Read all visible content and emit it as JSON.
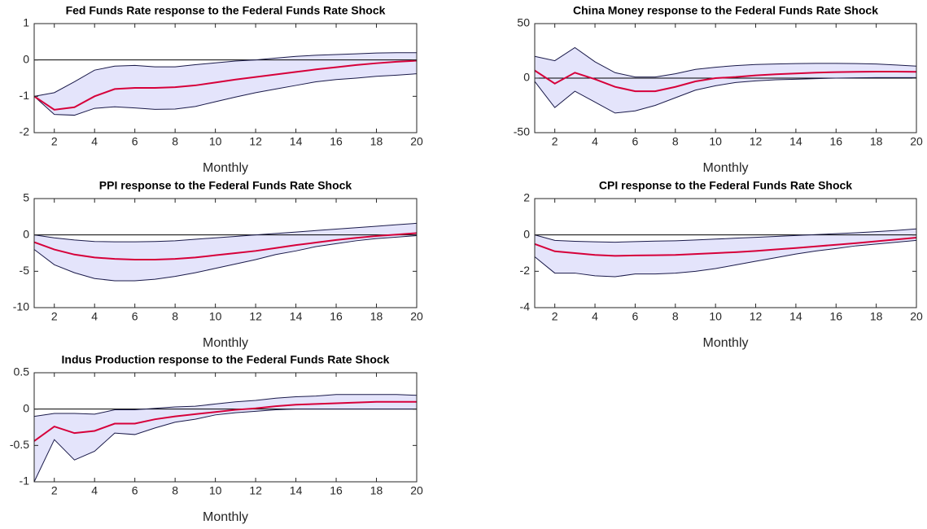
{
  "chart_data": [
    {
      "type": "band-line",
      "title": "Fed Funds Rate response to the Federal Funds Rate Shock",
      "xlabel": "Monthly",
      "x": [
        1,
        2,
        3,
        4,
        5,
        6,
        7,
        8,
        9,
        10,
        11,
        12,
        13,
        14,
        15,
        16,
        17,
        18,
        19,
        20
      ],
      "values": [
        -1,
        -1.37,
        -1.3,
        -1.0,
        -0.8,
        -0.77,
        -0.77,
        -0.75,
        -0.7,
        -0.62,
        -0.54,
        -0.47,
        -0.4,
        -0.33,
        -0.26,
        -0.2,
        -0.14,
        -0.09,
        -0.05,
        -0.02
      ],
      "upper": [
        -1,
        -0.9,
        -0.6,
        -0.28,
        -0.17,
        -0.15,
        -0.19,
        -0.19,
        -0.13,
        -0.08,
        -0.03,
        0,
        0.05,
        0.1,
        0.13,
        0.15,
        0.17,
        0.19,
        0.2,
        0.2
      ],
      "lower": [
        -1,
        -1.5,
        -1.52,
        -1.33,
        -1.29,
        -1.32,
        -1.36,
        -1.35,
        -1.28,
        -1.15,
        -1.02,
        -0.9,
        -0.8,
        -0.7,
        -0.6,
        -0.54,
        -0.5,
        -0.45,
        -0.42,
        -0.38
      ],
      "color": "#d6003a",
      "band_color": "#e4e4fb",
      "band_edge_color": "#1a1a4a",
      "xlim": [
        1,
        20
      ],
      "xticks": [
        2,
        4,
        6,
        8,
        10,
        12,
        14,
        16,
        18,
        20
      ],
      "ylim": [
        -2,
        1
      ],
      "yticks": [
        -2,
        -1,
        0,
        1
      ]
    },
    {
      "type": "band-line",
      "title": "China Money response to the Federal Funds Rate Shock",
      "xlabel": "Monthly",
      "x": [
        1,
        2,
        3,
        4,
        5,
        6,
        7,
        8,
        9,
        10,
        11,
        12,
        13,
        14,
        15,
        16,
        17,
        18,
        19,
        20
      ],
      "values": [
        7,
        -5,
        5,
        -1,
        -8,
        -12,
        -12,
        -8,
        -3,
        0,
        1,
        2.5,
        3.5,
        4.3,
        5,
        5.5,
        5.8,
        6,
        6,
        5.8
      ],
      "upper": [
        20,
        16,
        28,
        15,
        5,
        1,
        1,
        4,
        8,
        10,
        11.5,
        12.5,
        13,
        13.3,
        13.5,
        13.5,
        13.3,
        13,
        12,
        11
      ],
      "lower": [
        -3,
        -27,
        -12,
        -22,
        -32,
        -30,
        -25,
        -18,
        -11,
        -7,
        -4,
        -2.5,
        -1.5,
        -1,
        -0.5,
        0,
        0.3,
        0.5,
        0.5,
        0.5
      ],
      "color": "#d6003a",
      "band_color": "#e4e4fb",
      "band_edge_color": "#1a1a4a",
      "xlim": [
        1,
        20
      ],
      "xticks": [
        2,
        4,
        6,
        8,
        10,
        12,
        14,
        16,
        18,
        20
      ],
      "ylim": [
        -50,
        50
      ],
      "yticks": [
        -50,
        0,
        50
      ]
    },
    {
      "type": "band-line",
      "title": "PPI response to the Federal Funds Rate Shock",
      "xlabel": "Monthly",
      "x": [
        1,
        2,
        3,
        4,
        5,
        6,
        7,
        8,
        9,
        10,
        11,
        12,
        13,
        14,
        15,
        16,
        17,
        18,
        19,
        20
      ],
      "values": [
        -1,
        -2,
        -2.7,
        -3.1,
        -3.3,
        -3.4,
        -3.4,
        -3.3,
        -3.1,
        -2.8,
        -2.5,
        -2.2,
        -1.8,
        -1.4,
        -1.05,
        -0.7,
        -0.4,
        -0.15,
        0.05,
        0.25
      ],
      "upper": [
        0,
        -0.4,
        -0.7,
        -0.9,
        -0.95,
        -0.95,
        -0.9,
        -0.8,
        -0.6,
        -0.4,
        -0.2,
        0,
        0.2,
        0.4,
        0.6,
        0.8,
        1.0,
        1.2,
        1.4,
        1.6
      ],
      "lower": [
        -2,
        -4.1,
        -5.2,
        -6.0,
        -6.3,
        -6.3,
        -6.1,
        -5.7,
        -5.2,
        -4.6,
        -4.0,
        -3.4,
        -2.7,
        -2.2,
        -1.6,
        -1.2,
        -0.8,
        -0.5,
        -0.3,
        -0.1
      ],
      "color": "#d6003a",
      "band_color": "#e4e4fb",
      "band_edge_color": "#1a1a4a",
      "xlim": [
        1,
        20
      ],
      "xticks": [
        2,
        4,
        6,
        8,
        10,
        12,
        14,
        16,
        18,
        20
      ],
      "ylim": [
        -10,
        5
      ],
      "yticks": [
        -10,
        -5,
        0,
        5
      ]
    },
    {
      "type": "band-line",
      "title": "CPI response to the Federal Funds Rate Shock",
      "xlabel": "Monthly",
      "x": [
        1,
        2,
        3,
        4,
        5,
        6,
        7,
        8,
        9,
        10,
        11,
        12,
        13,
        14,
        15,
        16,
        17,
        18,
        19,
        20
      ],
      "values": [
        -0.5,
        -0.9,
        -1.0,
        -1.1,
        -1.15,
        -1.13,
        -1.12,
        -1.1,
        -1.05,
        -1.0,
        -0.95,
        -0.88,
        -0.8,
        -0.72,
        -0.63,
        -0.54,
        -0.45,
        -0.35,
        -0.25,
        -0.15
      ],
      "upper": [
        0,
        -0.3,
        -0.35,
        -0.38,
        -0.4,
        -0.37,
        -0.34,
        -0.32,
        -0.28,
        -0.23,
        -0.18,
        -0.13,
        -0.08,
        -0.03,
        0.02,
        0.07,
        0.12,
        0.18,
        0.25,
        0.33
      ],
      "lower": [
        -1.2,
        -2.1,
        -2.1,
        -2.25,
        -2.3,
        -2.15,
        -2.15,
        -2.1,
        -2.0,
        -1.85,
        -1.65,
        -1.45,
        -1.25,
        -1.05,
        -0.88,
        -0.75,
        -0.6,
        -0.5,
        -0.4,
        -0.3
      ],
      "color": "#d6003a",
      "band_color": "#e4e4fb",
      "band_edge_color": "#1a1a4a",
      "xlim": [
        1,
        20
      ],
      "xticks": [
        2,
        4,
        6,
        8,
        10,
        12,
        14,
        16,
        18,
        20
      ],
      "ylim": [
        -4,
        2
      ],
      "yticks": [
        -4,
        -2,
        0,
        2
      ]
    },
    {
      "type": "band-line",
      "title": "Indus Production response to the Federal Funds Rate Shock",
      "xlabel": "Monthly",
      "x": [
        1,
        2,
        3,
        4,
        5,
        6,
        7,
        8,
        9,
        10,
        11,
        12,
        13,
        14,
        15,
        16,
        17,
        18,
        19,
        20
      ],
      "values": [
        -0.44,
        -0.24,
        -0.33,
        -0.3,
        -0.2,
        -0.2,
        -0.14,
        -0.1,
        -0.07,
        -0.04,
        -0.01,
        0.01,
        0.04,
        0.06,
        0.07,
        0.08,
        0.09,
        0.1,
        0.1,
        0.1
      ],
      "upper": [
        -0.1,
        -0.06,
        -0.06,
        -0.07,
        -0.01,
        -0.01,
        0.01,
        0.03,
        0.04,
        0.07,
        0.1,
        0.12,
        0.15,
        0.17,
        0.18,
        0.2,
        0.2,
        0.2,
        0.2,
        0.19
      ],
      "lower": [
        -1.0,
        -0.42,
        -0.7,
        -0.58,
        -0.33,
        -0.35,
        -0.26,
        -0.18,
        -0.14,
        -0.08,
        -0.05,
        -0.03,
        -0.01,
        0,
        0,
        0,
        0,
        0,
        0,
        0
      ],
      "color": "#d6003a",
      "band_color": "#e4e4fb",
      "band_edge_color": "#1a1a4a",
      "xlim": [
        1,
        20
      ],
      "xticks": [
        2,
        4,
        6,
        8,
        10,
        12,
        14,
        16,
        18,
        20
      ],
      "ylim": [
        -1,
        0.5
      ],
      "yticks": [
        -1,
        -0.5,
        0,
        0.5
      ]
    }
  ]
}
